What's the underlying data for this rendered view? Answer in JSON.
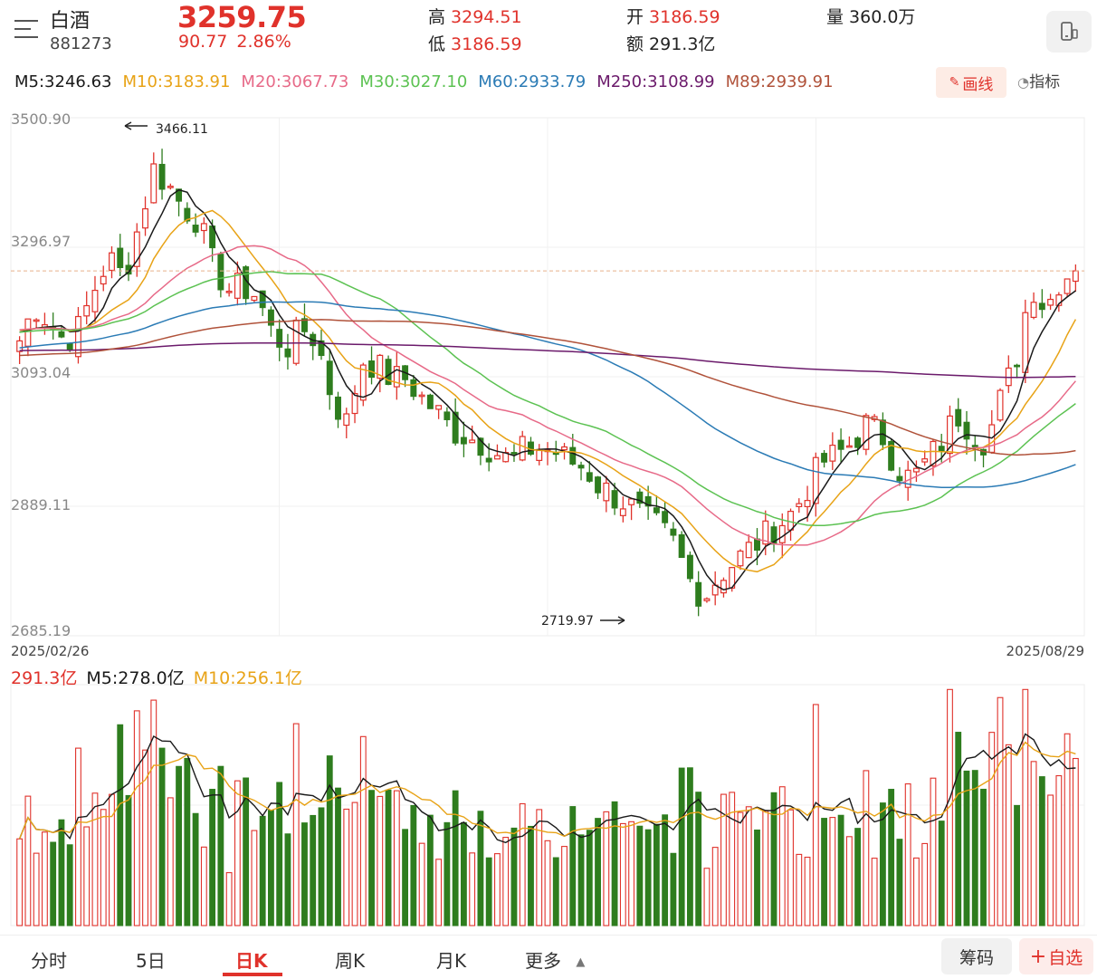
{
  "header": {
    "name": "白酒",
    "code": "881273",
    "price": "3259.75",
    "change": "90.77",
    "change_pct": "2.86%",
    "high_label": "高",
    "high_value": "3294.51",
    "low_label": "低",
    "low_value": "3186.59",
    "open_label": "开",
    "open_value": "3186.59",
    "amount_label": "额",
    "amount_value": "291.3亿",
    "volume_label": "量",
    "volume_value": "360.0万"
  },
  "ma_legend": [
    {
      "label": "M5:3246.63",
      "color": "#1a1a1a"
    },
    {
      "label": "M10:3183.91",
      "color": "#e8a317"
    },
    {
      "label": "M20:3067.73",
      "color": "#e76a88"
    },
    {
      "label": "M30:3027.10",
      "color": "#5cc252"
    },
    {
      "label": "M60:2933.79",
      "color": "#2b7bb5"
    },
    {
      "label": "M250:3108.99",
      "color": "#6b1a6b"
    },
    {
      "label": "M89:2939.91",
      "color": "#b0523a"
    }
  ],
  "toolbar": {
    "draw_label": "画线",
    "indicator_label": "指标"
  },
  "volume_legend": [
    {
      "label": "291.3亿",
      "color": "#e0322b"
    },
    {
      "label": "M5:278.0亿",
      "color": "#1a1a1a"
    },
    {
      "label": "M10:256.1亿",
      "color": "#e8a317"
    }
  ],
  "tabs": [
    {
      "label": "分时"
    },
    {
      "label": "5日"
    },
    {
      "label": "日K"
    },
    {
      "label": "周K"
    },
    {
      "label": "月K"
    },
    {
      "label": "更多"
    }
  ],
  "buttons": {
    "chips_label": "筹码",
    "watch_label": "自选"
  },
  "colors": {
    "up": "#e0322b",
    "down": "#2e7d1e"
  },
  "chart_data": {
    "type": "candlestick",
    "title": "白酒 881273 日K",
    "ylim": [
      2685.19,
      3500.9
    ],
    "y_ticks": [
      "3500.90",
      "3296.97",
      "3093.04",
      "2889.11",
      "2685.19"
    ],
    "x_start_label": "2025/02/26",
    "x_end_label": "2025/08/29",
    "max_label": "3466.11",
    "min_label": "2719.97",
    "last_close": 3259.75,
    "approx_daily_closes": [
      3150,
      3205,
      3180,
      3150,
      3170,
      3230,
      3280,
      3250,
      3330,
      3420,
      3395,
      3360,
      3340,
      3270,
      3230,
      3235,
      3220,
      3160,
      3140,
      3170,
      3150,
      3060,
      3020,
      3120,
      3110,
      3090,
      3090,
      3060,
      3040,
      3010,
      3000,
      2990,
      2975,
      2960,
      2980,
      2980,
      2975,
      2960,
      2950,
      2920,
      2905,
      2890,
      2870,
      2855,
      2830,
      2775,
      2745,
      2780,
      2800,
      2820,
      2840,
      2860,
      2880,
      2920,
      2960,
      2970,
      2990,
      3020,
      3000,
      2950,
      2930,
      2960,
      2990,
      3035,
      3010,
      2990,
      3060,
      3120,
      3240,
      3200,
      3250,
      3259.75
    ],
    "volume_ylim_yi": [
      0,
      420
    ],
    "volume_series": [
      {
        "name": "M5",
        "value": "278.0亿"
      },
      {
        "name": "M10",
        "value": "256.1亿"
      }
    ]
  }
}
